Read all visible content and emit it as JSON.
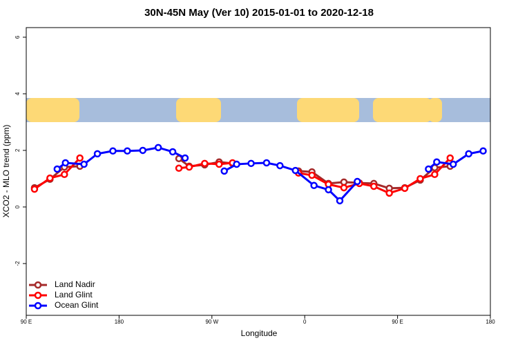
{
  "chart_data": {
    "type": "line",
    "title": "30N-45N May (Ver 10)   2015-01-01 to 2020-12-18",
    "x_label": "Longitude",
    "y_label": "XCO2 - MLO trend (ppm)",
    "xlim": [
      90,
      540
    ],
    "ylim": [
      -3.83,
      6.34
    ],
    "xticks": [
      {
        "value": 90,
        "label": "90 E"
      },
      {
        "value": 180,
        "label": "180"
      },
      {
        "value": 270,
        "label": "90 W"
      },
      {
        "value": 360,
        "label": "0"
      },
      {
        "value": 450,
        "label": "90 E"
      },
      {
        "value": 540,
        "label": "180"
      }
    ],
    "yticks": [
      -2,
      0,
      2,
      4,
      6
    ],
    "legend": "bottomleft",
    "series": [
      {
        "name": "Land Nadir",
        "color": "#a52a2a",
        "x": [
          98,
          113,
          127,
          142,
          null,
          238,
          248,
          263,
          277,
          290,
          null,
          354,
          367,
          383,
          398,
          413,
          427,
          442,
          457,
          472,
          486,
          501
        ],
        "values": [
          0.68,
          0.98,
          1.41,
          1.44,
          null,
          1.71,
          1.44,
          1.49,
          1.59,
          1.54,
          null,
          1.27,
          1.24,
          0.83,
          0.88,
          0.85,
          0.83,
          0.66,
          0.68,
          0.95,
          1.39,
          1.44
        ]
      },
      {
        "name": "Land Glint",
        "color": "#ff0000",
        "x": [
          98,
          113,
          127,
          142,
          null,
          238,
          248,
          263,
          277,
          290,
          null,
          354,
          367,
          383,
          398,
          413,
          427,
          442,
          457,
          472,
          486,
          501
        ],
        "values": [
          0.63,
          1.02,
          1.15,
          1.73,
          null,
          1.37,
          1.41,
          1.54,
          1.51,
          1.56,
          null,
          1.2,
          1.12,
          0.8,
          0.68,
          0.83,
          0.73,
          0.49,
          0.66,
          1.0,
          1.15,
          1.73
        ]
      },
      {
        "name": "Ocean Glint",
        "color": "#0000ff",
        "x": [
          120,
          128,
          146,
          159,
          174,
          188,
          203,
          218,
          232,
          244,
          null,
          282,
          294,
          308,
          323,
          336,
          351,
          369,
          383,
          394,
          411,
          null,
          480,
          488,
          504,
          519,
          533
        ],
        "values": [
          1.34,
          1.56,
          1.51,
          1.88,
          1.98,
          1.98,
          2.0,
          2.1,
          1.95,
          1.73,
          null,
          1.27,
          1.51,
          1.54,
          1.56,
          1.46,
          1.29,
          0.76,
          0.61,
          0.22,
          0.9,
          null,
          1.34,
          1.59,
          1.51,
          1.88,
          1.98
        ]
      }
    ]
  }
}
